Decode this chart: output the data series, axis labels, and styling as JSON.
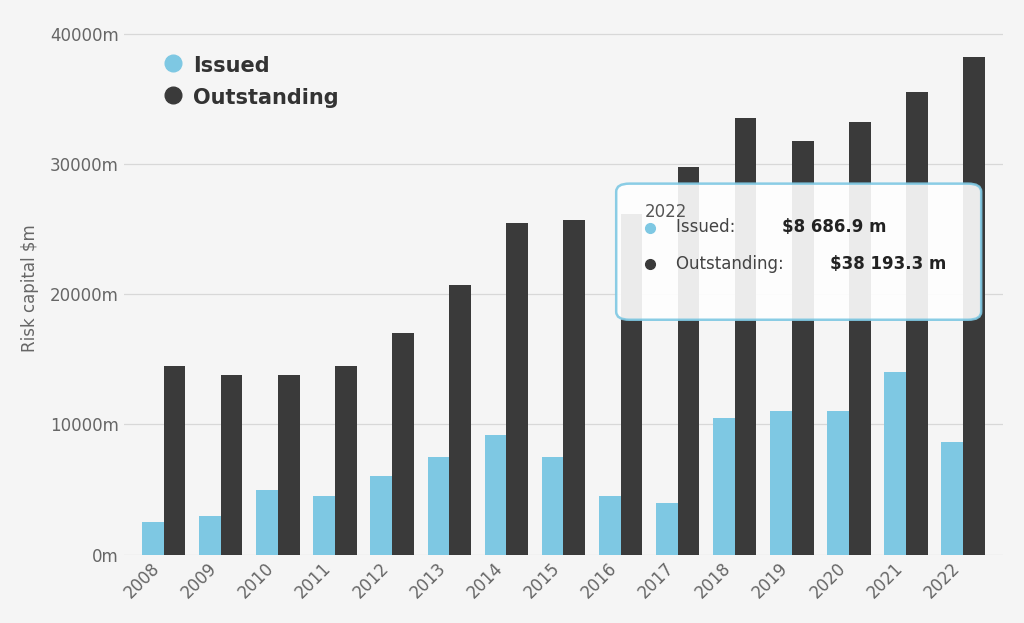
{
  "years": [
    2008,
    2009,
    2010,
    2011,
    2012,
    2013,
    2014,
    2015,
    2016,
    2017,
    2018,
    2019,
    2020,
    2021,
    2022
  ],
  "issued": [
    2500,
    3000,
    5000,
    4500,
    6000,
    7500,
    9200,
    7500,
    4500,
    4000,
    10500,
    11000,
    11000,
    14000,
    8686.9
  ],
  "outstanding": [
    14500,
    13800,
    13800,
    14500,
    17000,
    20700,
    25500,
    25700,
    26200,
    29800,
    33500,
    31800,
    33200,
    35500,
    38193.3
  ],
  "issued_color": "#7ec8e3",
  "outstanding_color": "#3a3a3a",
  "background_color": "#f5f5f5",
  "grid_color": "#d8d8d8",
  "ylabel": "Risk capital $m",
  "ylim": [
    0,
    41000
  ],
  "yticks": [
    0,
    10000,
    20000,
    30000,
    40000
  ],
  "ytick_labels": [
    "0m",
    "10000m",
    "20000m",
    "30000m",
    "40000m"
  ],
  "tooltip_year": "2022",
  "tooltip_issued_label": "Issued: ",
  "tooltip_issued_value": "$8 686.9 m",
  "tooltip_outstanding_label": "Outstanding: ",
  "tooltip_outstanding_value": "$38 193.3 m",
  "legend_issued": "Issued",
  "legend_outstanding": "Outstanding",
  "bar_width": 0.38
}
